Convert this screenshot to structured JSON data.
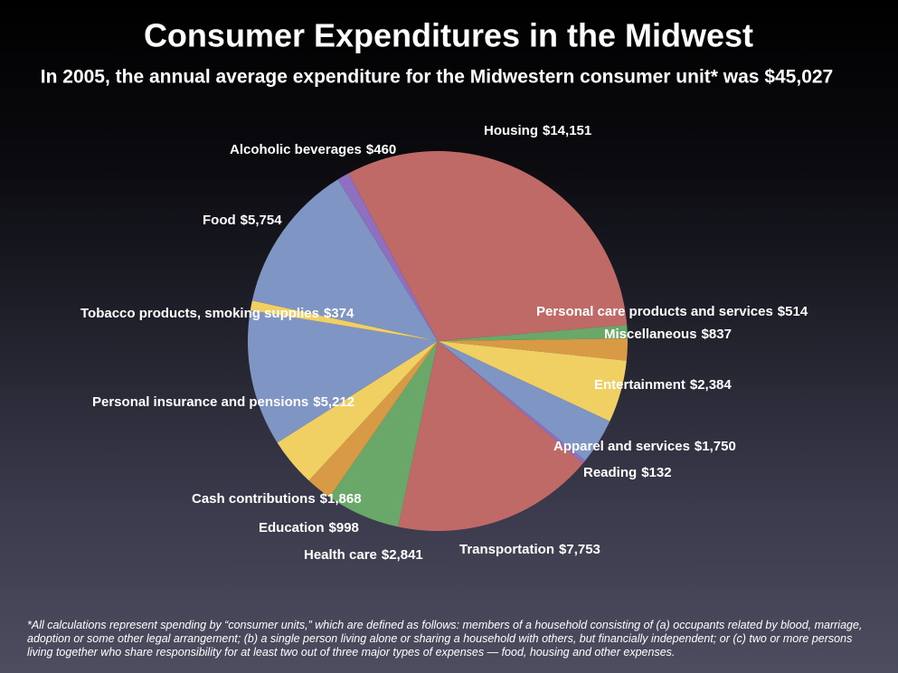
{
  "chart_data": {
    "type": "pie",
    "title": "Consumer Expenditures in the Midwest",
    "subtitle": "In 2005, the annual average expenditure for the Midwestern consumer unit* was $45,027",
    "categories": [
      "Housing",
      "Personal care products and services",
      "Miscellaneous",
      "Entertainment",
      "Apparel and services",
      "Reading",
      "Transportation",
      "Health care",
      "Education",
      "Cash contributions",
      "Personal insurance and pensions",
      "Tobacco products, smoking supplies",
      "Food",
      "Alcoholic beverages"
    ],
    "values": [
      14151,
      514,
      837,
      2384,
      1750,
      132,
      7753,
      2841,
      998,
      1868,
      5212,
      374,
      5754,
      460
    ],
    "value_labels": [
      "$14,151",
      "$514",
      "$837",
      "$2,384",
      "$1,750",
      "$132",
      "$7,753",
      "$2,841",
      "$998",
      "$1,868",
      "$5,212",
      "$374",
      "$5,754",
      "$460"
    ],
    "colors": [
      "#c06a68",
      "#6aa86a",
      "#d99a45",
      "#f0cf63",
      "#7f95c4",
      "#8f6fc0",
      "#c06a68",
      "#6aa86a",
      "#d99a45",
      "#f0cf63",
      "#7f95c4",
      "#f0cf63",
      "#7f95c4",
      "#8f6fc0"
    ],
    "footnote": "*All calculations represent spending by “consumer units,” which are defined as follows: members of a household consisting of (a) occupants related by blood, marriage, adoption or some other legal arrangement; (b) a single person living alone or sharing a household with others, but financially independent; or (c) two or more persons living together who share responsibility for at least two out of three major types of expenses — food, housing and other expenses."
  }
}
